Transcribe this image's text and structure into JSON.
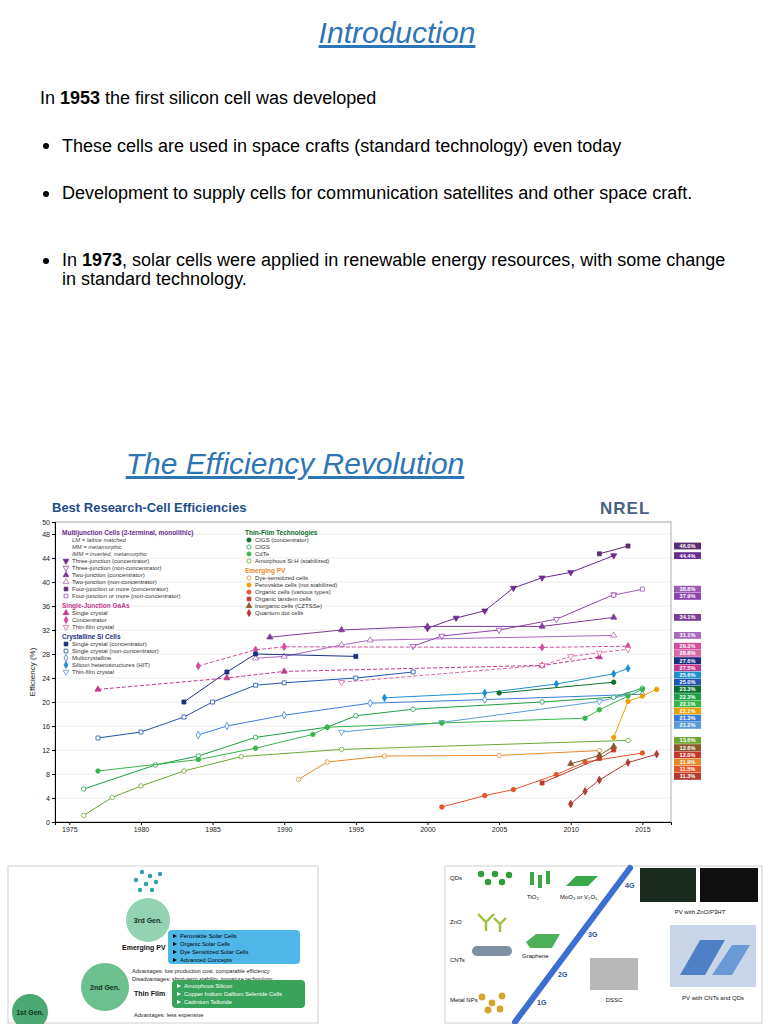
{
  "intro": {
    "title": "Introduction",
    "lead": [
      {
        "text": "In "
      },
      {
        "text": "1953",
        "bold": true
      },
      {
        "text": " the first silicon cell was developed"
      }
    ],
    "bullets": [
      [
        {
          "text": "These cells are used in space crafts (standard technology) even today"
        }
      ],
      [
        {
          "text": "Development to supply cells for communication satellites and other space craft."
        }
      ],
      [
        {
          "text": "In "
        },
        {
          "text": "1973",
          "bold": true
        },
        {
          "text": ", solar cells were applied in renewable energy resources, with some change in standard technology."
        }
      ]
    ]
  },
  "section": {
    "title": "The Efficiency Revolution"
  },
  "chart_data": {
    "type": "line",
    "title": "Best Research-Cell Efficiencies",
    "logo_text": "NREL",
    "y_label": "Efficiency (%)",
    "xlim": [
      1974,
      2017
    ],
    "ylim": [
      0,
      50
    ],
    "xticks": [
      1975,
      1980,
      1985,
      1990,
      1995,
      2000,
      2005,
      2010,
      2015
    ],
    "yticks": [
      0,
      4,
      8,
      12,
      16,
      20,
      24,
      28,
      32,
      36,
      40,
      44,
      48,
      50
    ],
    "grid": "y",
    "legend": "upper left",
    "data_labels": true,
    "groups": [
      {
        "title": "Multijunction Cells (2-terminal, monolithic)",
        "notes": [
          "LM = lattice matched",
          "MM = metamorphic",
          "IMM = inverted, metamorphic"
        ],
        "series": [
          {
            "name": "Three-junction (concentrator)",
            "color": "#6a2c91",
            "marker": "triangle-down",
            "line_style": "solid",
            "x": [
              2000,
              2002,
              2004,
              2006,
              2008,
              2010,
              2013
            ],
            "values": [
              32.3,
              34.0,
              35.2,
              39.0,
              40.7,
              41.6,
              44.4
            ],
            "value_labels": [
              null,
              null,
              null,
              null,
              null,
              null,
              "44.4%"
            ]
          },
          {
            "name": "Three-junction (non-concentrator)",
            "color": "#8e44ad",
            "marker": "triangle-down-open",
            "line_style": "solid",
            "x": [
              1999,
              2001,
              2005,
              2009,
              2013
            ],
            "values": [
              29.3,
              31.0,
              32.0,
              33.8,
              37.9
            ],
            "value_labels": [
              null,
              null,
              null,
              null,
              "37.9%"
            ]
          },
          {
            "name": "Two-junction (concentrator)",
            "color": "#7d3c98",
            "marker": "triangle-up",
            "line_style": "solid",
            "x": [
              1989,
              1994,
              2000,
              2008,
              2013
            ],
            "values": [
              30.8,
              32.0,
              32.6,
              32.6,
              34.1
            ],
            "value_labels": [
              null,
              null,
              null,
              null,
              "34.1%"
            ]
          },
          {
            "name": "Two-junction (non-concentrator)",
            "color": "#a569bd",
            "marker": "triangle-up-open",
            "line_style": "solid",
            "x": [
              1988,
              1990,
              1994,
              1996,
              2013
            ],
            "values": [
              27.3,
              27.6,
              29.5,
              30.3,
              31.1
            ],
            "value_labels": [
              null,
              null,
              null,
              null,
              "31.1%"
            ]
          },
          {
            "name": "Four-junction or more (concentrator)",
            "color": "#5b2c6f",
            "marker": "square",
            "line_style": "solid",
            "x": [
              2012,
              2014
            ],
            "values": [
              44.7,
              46.0
            ],
            "value_labels": [
              null,
              "46.0%"
            ]
          },
          {
            "name": "Four-junction or more (non-concentrator)",
            "color": "#9b59b6",
            "marker": "square-open",
            "line_style": "solid",
            "x": [
              2013,
              2015
            ],
            "values": [
              37.8,
              38.8
            ],
            "value_labels": [
              null,
              "38.8%"
            ]
          }
        ]
      },
      {
        "title": "Single-Junction GaAs",
        "series": [
          {
            "name": "Single crystal",
            "color": "#c0398e",
            "marker": "triangle-up",
            "line_style": "dashed",
            "x": [
              1977,
              1986,
              1990,
              2008,
              2012
            ],
            "values": [
              22.1,
              24.0,
              25.1,
              26.1,
              27.5
            ],
            "value_labels": [
              null,
              null,
              null,
              null,
              "27.5%"
            ]
          },
          {
            "name": "Concentrator",
            "color": "#d24d9b",
            "marker": "diamond",
            "line_style": "dashed",
            "x": [
              1984,
              1988,
              1990,
              2008,
              2014
            ],
            "values": [
              26.0,
              28.7,
              29.2,
              29.1,
              29.3
            ],
            "value_labels": [
              null,
              null,
              null,
              null,
              "29.3%"
            ]
          },
          {
            "name": "Thin-film crystal",
            "color": "#d96aa8",
            "marker": "triangle-down-open",
            "line_style": "dashed",
            "x": [
              1994,
              2008,
              2010,
              2012,
              2014
            ],
            "values": [
              23.3,
              26.1,
              27.6,
              28.2,
              28.8
            ],
            "value_labels": [
              null,
              null,
              null,
              null,
              "28.8%"
            ]
          }
        ]
      },
      {
        "title": "Crystalline Si Cells",
        "series": [
          {
            "name": "Single crystal (concentrator)",
            "color": "#1b2f80",
            "marker": "square",
            "line_style": "solid",
            "x": [
              1983,
              1986,
              1988,
              1995
            ],
            "values": [
              20.0,
              25.0,
              28.0,
              27.6
            ],
            "value_labels": [
              null,
              null,
              null,
              "27.6%"
            ]
          },
          {
            "name": "Single crystal (non-concentrator)",
            "color": "#2155b0",
            "marker": "square-open",
            "line_style": "solid",
            "x": [
              1977,
              1980,
              1983,
              1985,
              1988,
              1990,
              1995,
              1999
            ],
            "values": [
              14.0,
              15.0,
              17.5,
              20.0,
              22.8,
              23.2,
              24.0,
              25.0
            ],
            "value_labels": [
              null,
              null,
              null,
              null,
              null,
              null,
              null,
              "25.0%"
            ]
          },
          {
            "name": "Multicrystalline",
            "color": "#3c7dd9",
            "marker": "diamond-open",
            "line_style": "solid",
            "x": [
              1984,
              1986,
              1990,
              1996,
              2004,
              2015
            ],
            "values": [
              14.5,
              16.0,
              17.8,
              19.8,
              20.4,
              21.3
            ],
            "value_labels": [
              null,
              null,
              null,
              null,
              null,
              "21.3%"
            ]
          },
          {
            "name": "Silicon heterostructures (HIT)",
            "color": "#1f8fcf",
            "marker": "diamond",
            "line_style": "solid",
            "x": [
              1997,
              2004,
              2009,
              2013,
              2014
            ],
            "values": [
              20.7,
              21.5,
              23.0,
              24.7,
              25.6
            ],
            "value_labels": [
              null,
              null,
              null,
              null,
              "25.6%"
            ]
          },
          {
            "name": "Thin-film crystal",
            "color": "#5b9bd5",
            "marker": "triangle-down-open",
            "line_style": "solid",
            "x": [
              1994,
              2001,
              2012,
              2014
            ],
            "values": [
              15.0,
              16.6,
              20.1,
              21.2
            ],
            "value_labels": [
              null,
              null,
              null,
              "21.2%"
            ]
          }
        ]
      },
      {
        "title": "Thin-Film Technologies",
        "series": [
          {
            "name": "CIGS (concentrator)",
            "color": "#0b6e2a",
            "marker": "circle",
            "line_style": "solid",
            "x": [
              2005,
              2013
            ],
            "values": [
              21.5,
              23.3
            ],
            "value_labels": [
              null,
              "23.3%"
            ]
          },
          {
            "name": "CIGS",
            "color": "#1e9e44",
            "marker": "circle-open",
            "line_style": "solid",
            "x": [
              1976,
              1981,
              1984,
              1988,
              1993,
              1995,
              1999,
              2008,
              2013,
              2015
            ],
            "values": [
              5.5,
              9.5,
              11.0,
              14.1,
              15.8,
              17.7,
              18.8,
              20.0,
              20.8,
              22.3
            ],
            "value_labels": [
              null,
              null,
              null,
              null,
              null,
              null,
              null,
              null,
              null,
              "22.3%"
            ]
          },
          {
            "name": "CdTe",
            "color": "#38b54a",
            "marker": "circle",
            "line_style": "solid",
            "x": [
              1977,
              1984,
              1988,
              1992,
              1993,
              2001,
              2011,
              2012,
              2014,
              2015
            ],
            "values": [
              8.5,
              10.4,
              12.3,
              14.6,
              15.8,
              16.5,
              17.3,
              18.7,
              21.0,
              22.1
            ],
            "value_labels": [
              null,
              null,
              null,
              null,
              null,
              null,
              null,
              null,
              null,
              "22.1%"
            ]
          },
          {
            "name": "Amorphous Si:H (stabilized)",
            "color": "#6aa832",
            "marker": "circle-open",
            "line_style": "solid",
            "x": [
              1976,
              1978,
              1980,
              1983,
              1987,
              1994,
              2014
            ],
            "values": [
              1.1,
              4.1,
              6.0,
              8.5,
              10.9,
              12.1,
              13.6
            ],
            "value_labels": [
              null,
              null,
              null,
              null,
              null,
              null,
              "13.6%"
            ]
          }
        ]
      },
      {
        "title": "Emerging PV",
        "series": [
          {
            "name": "Dye-sensitized cells",
            "color": "#e38b2c",
            "marker": "circle-open",
            "line_style": "solid",
            "x": [
              1991,
              1993,
              1997,
              2005,
              2012
            ],
            "values": [
              7.1,
              10.0,
              11.0,
              11.1,
              11.9
            ],
            "value_labels": [
              null,
              null,
              null,
              null,
              "11.9%"
            ]
          },
          {
            "name": "Perovskite cells (not stabilized)",
            "color": "#e9a000",
            "marker": "circle",
            "line_style": "solid",
            "x": [
              2013,
              2014,
              2015,
              2016
            ],
            "values": [
              14.1,
              20.1,
              21.0,
              22.1
            ],
            "value_labels": [
              null,
              null,
              null,
              "22.1%"
            ]
          },
          {
            "name": "Organic cells (various types)",
            "color": "#e5542a",
            "marker": "circle",
            "line_style": "solid",
            "x": [
              2001,
              2004,
              2006,
              2009,
              2011,
              2015
            ],
            "values": [
              2.5,
              4.4,
              5.4,
              7.9,
              10.0,
              11.5
            ],
            "value_labels": [
              null,
              null,
              null,
              null,
              null,
              "11.5%"
            ]
          },
          {
            "name": "Organic tandem cells",
            "color": "#c0392b",
            "marker": "square",
            "line_style": "solid",
            "x": [
              2008,
              2012,
              2013
            ],
            "values": [
              6.5,
              10.6,
              12.0
            ],
            "value_labels": [
              null,
              null,
              "12.0%"
            ]
          },
          {
            "name": "Inorganic cells (CZTSSe)",
            "color": "#8a5a2b",
            "marker": "triangle-up",
            "line_style": "solid",
            "x": [
              2010,
              2012,
              2013
            ],
            "values": [
              9.7,
              11.1,
              12.6
            ],
            "value_labels": [
              null,
              null,
              "12.6%"
            ]
          },
          {
            "name": "Quantum dot cells",
            "color": "#b03a2e",
            "marker": "diamond",
            "line_style": "solid",
            "x": [
              2010,
              2011,
              2012,
              2014,
              2016
            ],
            "values": [
              3.0,
              5.1,
              7.0,
              9.9,
              11.3
            ],
            "value_labels": [
              null,
              null,
              null,
              null,
              "11.3%"
            ]
          }
        ]
      }
    ]
  },
  "figures": {
    "generations": {
      "tiers": [
        {
          "label": "3rd Gen.",
          "title": "Emerging PV",
          "items": [
            "Perovskite Solar Cells",
            "Organic Solar Cells",
            "Dye Sensitized Solar Cells",
            "Advanced Concepts"
          ],
          "notes": [
            "Advantages: low production cost, comparable efficiency",
            "Disadvantages: short-term stability, immature technology"
          ]
        },
        {
          "label": "2nd Gen.",
          "title": "Thin Film",
          "items": [
            "Amorphous Silicon",
            "Copper Indium Gallium Selenide Cells",
            "Cadmium Telluride"
          ],
          "notes": [
            "Advantages: less expensive"
          ]
        },
        {
          "label": "1st Gen."
        }
      ]
    },
    "nanomaterials": {
      "materials": [
        "QDs",
        "TiO₂",
        "MoO₃ or V₂O₅",
        "ZnO",
        "Graphene",
        "CNTs",
        "Metal NPs"
      ],
      "generations": [
        "1G",
        "2G",
        "3G",
        "4G"
      ],
      "devices": [
        "PV with ZnO/P3HT",
        "DSSC",
        "PV with CNTs and QDs"
      ]
    }
  }
}
